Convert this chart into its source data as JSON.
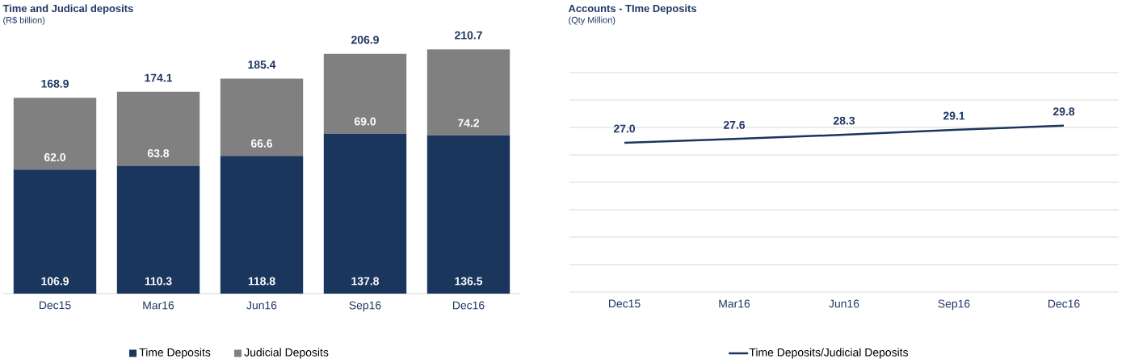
{
  "chart_data": [
    {
      "type": "bar",
      "title": "Time and Judical deposits",
      "subtitle": "(R$ billion)",
      "stacked": true,
      "categories": [
        "Dec15",
        "Mar16",
        "Jun16",
        "Sep16",
        "Dec16"
      ],
      "series": [
        {
          "name": "Time Deposits",
          "color": "#1b365d",
          "values": [
            106.9,
            110.3,
            118.8,
            137.8,
            136.5
          ],
          "value_labels": [
            "106.9",
            "110.3",
            "118.8",
            "137.8",
            "136.5"
          ]
        },
        {
          "name": "Judicial Deposits",
          "color": "#808080",
          "values": [
            62.0,
            63.8,
            66.6,
            69.0,
            74.2
          ],
          "value_labels": [
            "62.0",
            "63.8",
            "66.6",
            "69.0",
            "74.2"
          ]
        }
      ],
      "totals": [
        "168.9",
        "174.1",
        "185.4",
        "206.9",
        "210.7"
      ],
      "tick_labels": "x",
      "legend": "bottom"
    },
    {
      "type": "line",
      "title": "Accounts  - TIme Deposits",
      "subtitle": "(Qty Million)",
      "categories": [
        "Dec15",
        "Mar16",
        "Jun16",
        "Sep16",
        "Dec16"
      ],
      "series": [
        {
          "name": "Time Deposits/Judicial Deposits",
          "color": "#1b365d",
          "values": [
            27.0,
            27.6,
            28.3,
            29.1,
            29.8
          ],
          "value_labels": [
            "27.0",
            "27.6",
            "28.3",
            "29.1",
            "29.8"
          ]
        }
      ],
      "ylim": [
        2.5,
        38.5
      ],
      "yticks": [
        {
          "value": 2.5,
          "label": null
        },
        {
          "value": 7,
          "label": null
        },
        {
          "value": 11.5,
          "label": null
        },
        {
          "value": 16,
          "label": null
        },
        {
          "value": 20.5,
          "label": null
        },
        {
          "value": 25,
          "label": null
        },
        {
          "value": 29.5,
          "label": null
        },
        {
          "value": 34,
          "label": null
        },
        {
          "value": 38.5,
          "label": null
        }
      ],
      "grid": "y",
      "tick_labels": "x",
      "legend": "bottom"
    }
  ]
}
